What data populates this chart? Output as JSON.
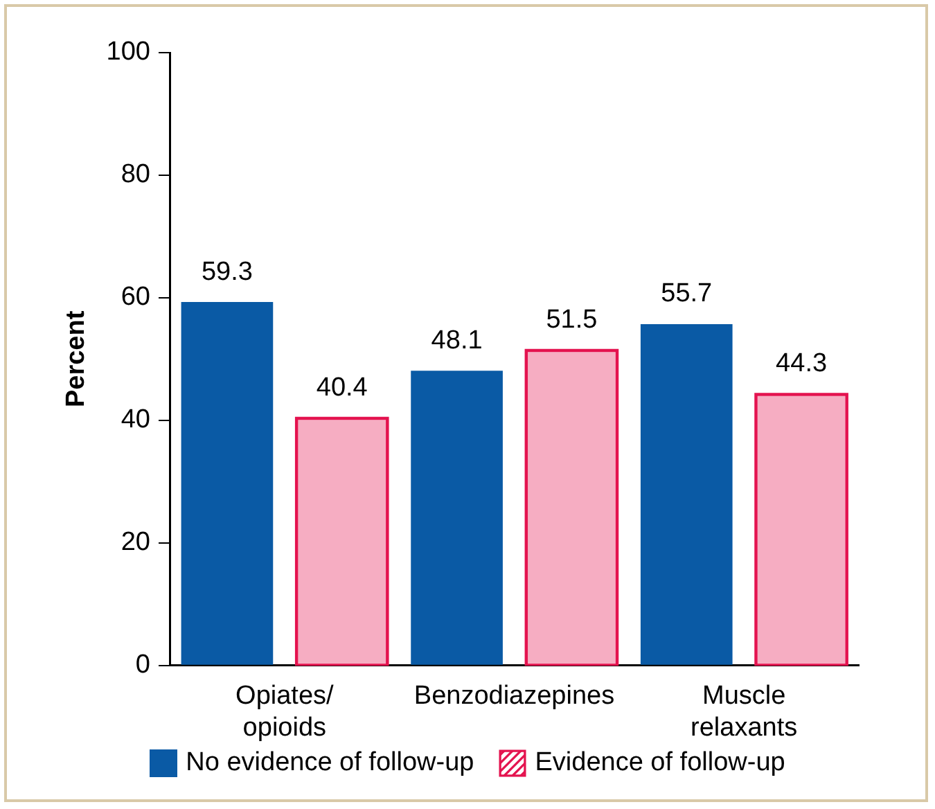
{
  "chart_data": {
    "type": "bar",
    "ylabel": "Percent",
    "categories": [
      "Opiates/\nopioids",
      "Benzodiazepines",
      "Muscle\nrelaxants"
    ],
    "series": [
      {
        "name": "No evidence of follow-up",
        "color": "#0a5aa5",
        "values": [
          59.3,
          48.1,
          55.7
        ]
      },
      {
        "name": "Evidence of follow-up",
        "color": "#e4134f",
        "values": [
          40.4,
          51.5,
          44.3
        ]
      }
    ],
    "ylim": [
      0,
      100
    ],
    "yticks": [
      0,
      20,
      40,
      60,
      80,
      100
    ],
    "grid": false,
    "legend": "bottom",
    "data_labels": true
  }
}
